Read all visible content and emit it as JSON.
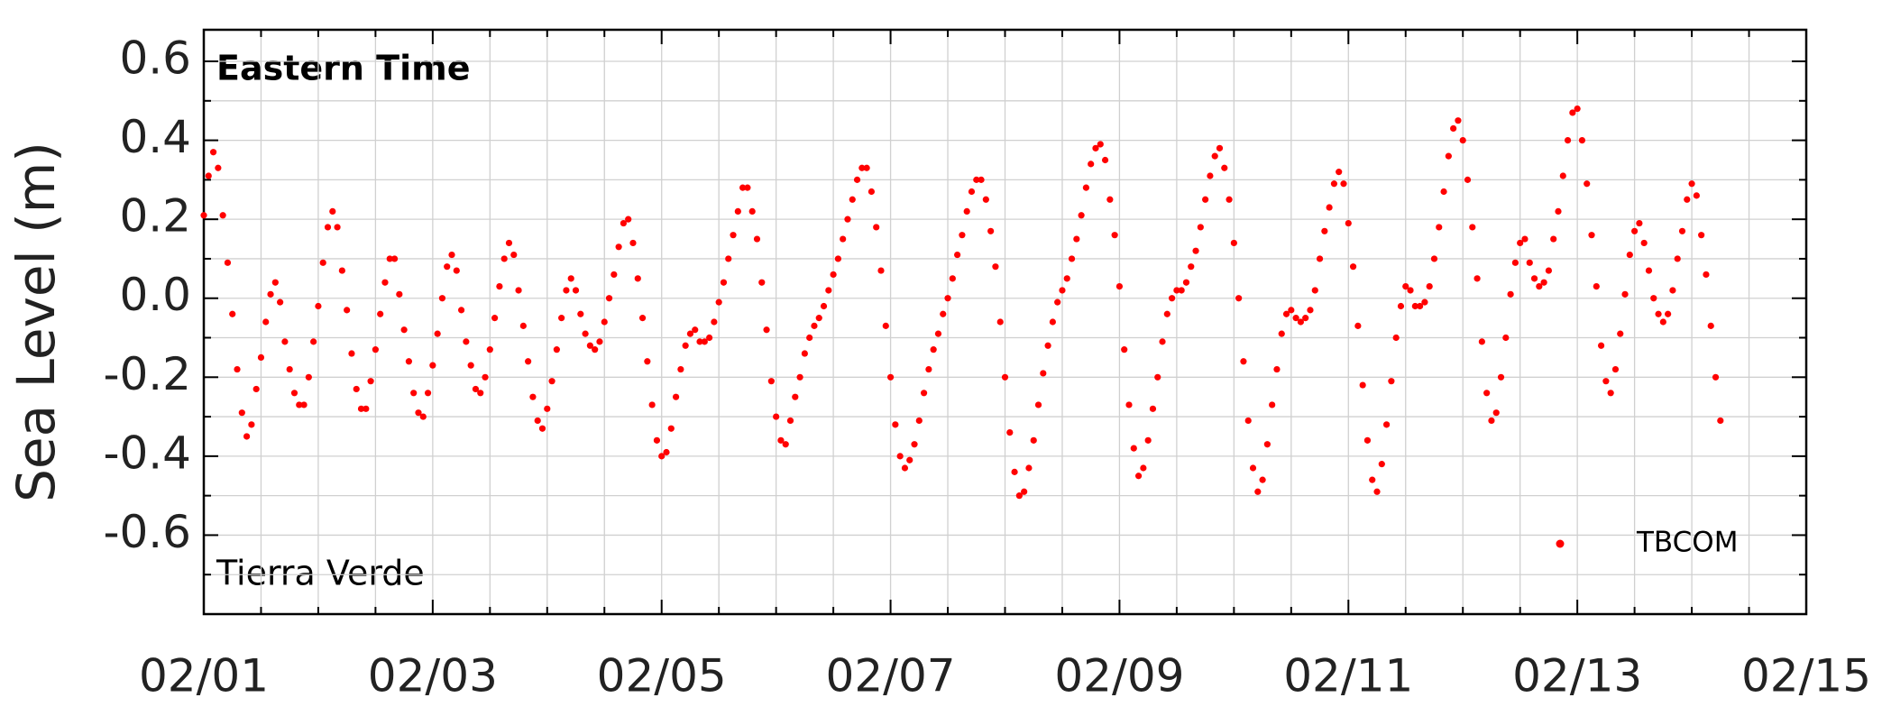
{
  "chart_data": {
    "type": "scatter",
    "ylabel": "Sea Level (m)",
    "annotations": [
      "Eastern Time",
      "Tierra Verde"
    ],
    "legend": "lower right",
    "grid": true,
    "xlim": [
      0,
      336
    ],
    "xticks": [
      {
        "value": 0,
        "label": "02/01"
      },
      {
        "value": 48,
        "label": "02/03"
      },
      {
        "value": 96,
        "label": "02/05"
      },
      {
        "value": 144,
        "label": "02/07"
      },
      {
        "value": 192,
        "label": "02/09"
      },
      {
        "value": 240,
        "label": "02/11"
      },
      {
        "value": 288,
        "label": "02/13"
      },
      {
        "value": 336,
        "label": "02/15"
      }
    ],
    "xminorticks": [
      12,
      24,
      36,
      60,
      72,
      84,
      108,
      120,
      132,
      156,
      168,
      180,
      204,
      216,
      228,
      252,
      264,
      276,
      300,
      312,
      324
    ],
    "ylim": [
      -0.8,
      0.68
    ],
    "yticks": [
      -0.6,
      -0.4,
      -0.2,
      {
        "value": 0,
        "label": "0.0"
      },
      0.2,
      0.4,
      0.6
    ],
    "yminorticks": [
      -0.7,
      -0.5,
      -0.3,
      -0.1,
      0.1,
      0.3,
      0.5
    ],
    "x": [
      0,
      1,
      2,
      3,
      4,
      5,
      6,
      7,
      8,
      9,
      10,
      11,
      12,
      13,
      14,
      15,
      16,
      17,
      18,
      19,
      20,
      21,
      22,
      23,
      24,
      25,
      26,
      27,
      28,
      29,
      30,
      31,
      32,
      33,
      34,
      35,
      36,
      37,
      38,
      39,
      40,
      41,
      42,
      43,
      44,
      45,
      46,
      47,
      48,
      49,
      50,
      51,
      52,
      53,
      54,
      55,
      56,
      57,
      58,
      59,
      60,
      61,
      62,
      63,
      64,
      65,
      66,
      67,
      68,
      69,
      70,
      71,
      72,
      73,
      74,
      75,
      76,
      77,
      78,
      79,
      80,
      81,
      82,
      83,
      84,
      85,
      86,
      87,
      88,
      89,
      90,
      91,
      92,
      93,
      94,
      95,
      96,
      97,
      98,
      99,
      100,
      101,
      102,
      103,
      104,
      105,
      106,
      107,
      108,
      109,
      110,
      111,
      112,
      113,
      114,
      115,
      116,
      117,
      118,
      119,
      120,
      121,
      122,
      123,
      124,
      125,
      126,
      127,
      128,
      129,
      130,
      131,
      132,
      133,
      134,
      135,
      136,
      137,
      138,
      139,
      140,
      141,
      142,
      143,
      144,
      145,
      146,
      147,
      148,
      149,
      150,
      151,
      152,
      153,
      154,
      155,
      156,
      157,
      158,
      159,
      160,
      161,
      162,
      163,
      164,
      165,
      166,
      167,
      168,
      169,
      170,
      171,
      172,
      173,
      174,
      175,
      176,
      177,
      178,
      179,
      180,
      181,
      182,
      183,
      184,
      185,
      186,
      187,
      188,
      189,
      190,
      191,
      192,
      193,
      194,
      195,
      196,
      197,
      198,
      199,
      200,
      201,
      202,
      203,
      204,
      205,
      206,
      207,
      208,
      209,
      210,
      211,
      212,
      213,
      214,
      215,
      216,
      217,
      218,
      219,
      220,
      221,
      222,
      223,
      224,
      225,
      226,
      227,
      228,
      229,
      230,
      231,
      232,
      233,
      234,
      235,
      236,
      237,
      238,
      239,
      240,
      241,
      242,
      243,
      244,
      245,
      246,
      247,
      248,
      249,
      250,
      251,
      252,
      253,
      254,
      255,
      256,
      257,
      258,
      259,
      260,
      261,
      262,
      263,
      264,
      265,
      266,
      267,
      268,
      269,
      270,
      271,
      272,
      273,
      274,
      275,
      276,
      277,
      278,
      279,
      280,
      281,
      282,
      283,
      284,
      285,
      286,
      287,
      288,
      289,
      290,
      291,
      292,
      293,
      294,
      295,
      296,
      297,
      298,
      299,
      300,
      301,
      302,
      303,
      304,
      305,
      306,
      307,
      308,
      309,
      310,
      311,
      312,
      313,
      314,
      315,
      316,
      317,
      318
    ],
    "series": [
      {
        "name": "TBCOM",
        "color": "#ff0000",
        "values": [
          0.21,
          0.31,
          0.37,
          0.33,
          0.21,
          0.09,
          -0.04,
          -0.18,
          -0.29,
          -0.35,
          -0.32,
          -0.23,
          -0.15,
          -0.06,
          0.01,
          0.04,
          -0.01,
          -0.11,
          -0.18,
          -0.24,
          -0.27,
          -0.27,
          -0.2,
          -0.11,
          -0.02,
          0.09,
          0.18,
          0.22,
          0.18,
          0.07,
          -0.03,
          -0.14,
          -0.23,
          -0.28,
          -0.28,
          -0.21,
          -0.13,
          -0.04,
          0.04,
          0.1,
          0.1,
          0.01,
          -0.08,
          -0.16,
          -0.24,
          -0.29,
          -0.3,
          -0.24,
          -0.17,
          -0.09,
          0.0,
          0.08,
          0.11,
          0.07,
          -0.03,
          -0.11,
          -0.17,
          -0.23,
          -0.24,
          -0.2,
          -0.13,
          -0.05,
          0.03,
          0.1,
          0.14,
          0.11,
          0.02,
          -0.07,
          -0.16,
          -0.25,
          -0.31,
          -0.33,
          -0.28,
          -0.21,
          -0.13,
          -0.05,
          0.02,
          0.05,
          0.02,
          -0.04,
          -0.09,
          -0.12,
          -0.13,
          -0.11,
          -0.06,
          0.0,
          0.06,
          0.13,
          0.19,
          0.2,
          0.14,
          0.05,
          -0.05,
          -0.16,
          -0.27,
          -0.36,
          -0.4,
          -0.39,
          -0.33,
          -0.25,
          -0.18,
          -0.12,
          -0.09,
          -0.08,
          -0.11,
          -0.11,
          -0.1,
          -0.06,
          -0.01,
          0.04,
          0.1,
          0.16,
          0.22,
          0.28,
          0.28,
          0.22,
          0.15,
          0.04,
          -0.08,
          -0.21,
          -0.3,
          -0.36,
          -0.37,
          -0.31,
          -0.25,
          -0.2,
          -0.14,
          -0.1,
          -0.07,
          -0.05,
          -0.02,
          0.02,
          0.06,
          0.1,
          0.15,
          0.2,
          0.25,
          0.3,
          0.33,
          0.33,
          0.27,
          0.18,
          0.07,
          -0.07,
          -0.2,
          -0.32,
          -0.4,
          -0.43,
          -0.41,
          -0.37,
          -0.31,
          -0.24,
          -0.18,
          -0.13,
          -0.09,
          -0.04,
          0.0,
          0.05,
          0.11,
          0.16,
          0.22,
          0.27,
          0.3,
          0.3,
          0.25,
          0.17,
          0.08,
          -0.06,
          -0.2,
          -0.34,
          -0.44,
          -0.5,
          -0.49,
          -0.43,
          -0.36,
          -0.27,
          -0.19,
          -0.12,
          -0.06,
          -0.01,
          0.02,
          0.05,
          0.1,
          0.15,
          0.21,
          0.28,
          0.34,
          0.38,
          0.39,
          0.35,
          0.25,
          0.16,
          0.03,
          -0.13,
          -0.27,
          -0.38,
          -0.45,
          -0.43,
          -0.36,
          -0.28,
          -0.2,
          -0.11,
          -0.04,
          0.0,
          0.02,
          0.02,
          0.04,
          0.08,
          0.12,
          0.18,
          0.25,
          0.31,
          0.36,
          0.38,
          0.33,
          0.25,
          0.14,
          0.0,
          -0.16,
          -0.31,
          -0.43,
          -0.49,
          -0.46,
          -0.37,
          -0.27,
          -0.18,
          -0.09,
          -0.04,
          -0.03,
          -0.05,
          -0.06,
          -0.05,
          -0.03,
          0.02,
          0.1,
          0.17,
          0.23,
          0.29,
          0.32,
          0.29,
          0.19,
          0.08,
          -0.07,
          -0.22,
          -0.36,
          -0.46,
          -0.49,
          -0.42,
          -0.32,
          -0.21,
          -0.1,
          -0.02,
          0.03,
          0.02,
          -0.02,
          -0.02,
          -0.01,
          0.03,
          0.1,
          0.18,
          0.27,
          0.36,
          0.43,
          0.45,
          0.4,
          0.3,
          0.18,
          0.05,
          -0.11,
          -0.24,
          -0.31,
          -0.29,
          -0.2,
          -0.1,
          0.01,
          0.09,
          0.14,
          0.15,
          0.09,
          0.05,
          0.03,
          0.04,
          0.07,
          0.15,
          0.22,
          0.31,
          0.4,
          0.47,
          0.48,
          0.4,
          0.29,
          0.16,
          0.03,
          -0.12,
          -0.21,
          -0.24,
          -0.18,
          -0.09,
          0.01,
          0.11,
          0.17,
          0.19,
          0.14,
          0.07,
          0.0,
          -0.04,
          -0.06,
          -0.04,
          0.02,
          0.1,
          0.17,
          0.25,
          0.29,
          0.26,
          0.16,
          0.06,
          -0.07,
          -0.2,
          -0.31
        ]
      }
    ]
  }
}
